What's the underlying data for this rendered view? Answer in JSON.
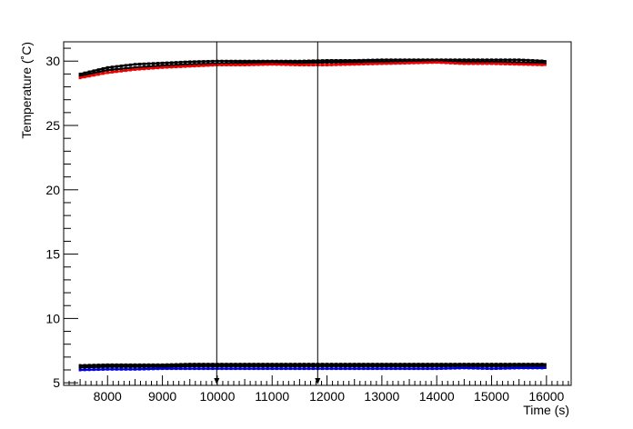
{
  "chart_data": {
    "type": "line",
    "xlabel": "Time (s)",
    "ylabel": "Temperature (˚C)",
    "xlim": [
      7200,
      16450
    ],
    "ylim": [
      4.8,
      31.5
    ],
    "x_ticks": [
      8000,
      9000,
      10000,
      11000,
      12000,
      13000,
      14000,
      15000,
      16000
    ],
    "y_ticks": [
      5,
      10,
      15,
      20,
      25,
      30
    ],
    "grid": false,
    "series": [
      {
        "color": "#000000",
        "x": [
          7500,
          8000,
          8500,
          9000,
          9500,
          10000,
          10500,
          11000,
          11500,
          12000,
          12500,
          13000,
          13500,
          14000,
          14500,
          15000,
          15500,
          16000
        ],
        "values": [
          29.0,
          29.5,
          29.75,
          29.85,
          29.95,
          30.0,
          30.0,
          30.0,
          30.0,
          30.05,
          30.05,
          30.1,
          30.1,
          30.1,
          30.1,
          30.1,
          30.1,
          30.0
        ]
      },
      {
        "color": "#000000",
        "x": [
          7500,
          8000,
          8500,
          9000,
          9500,
          10000,
          10500,
          11000,
          11500,
          12000,
          12500,
          13000,
          13500,
          14000,
          14500,
          15000,
          15500,
          16000
        ],
        "values": [
          28.85,
          29.3,
          29.5,
          29.65,
          29.75,
          29.8,
          29.85,
          29.85,
          29.85,
          29.9,
          29.9,
          29.95,
          29.95,
          29.95,
          29.95,
          29.95,
          29.9,
          29.85
        ]
      },
      {
        "color": "#ee0000",
        "x": [
          7500,
          8000,
          8500,
          9000,
          9500,
          10000,
          10500,
          11000,
          11500,
          12000,
          12500,
          13000,
          13500,
          14000,
          14500,
          15000,
          15500,
          16000
        ],
        "values": [
          28.7,
          29.1,
          29.35,
          29.5,
          29.6,
          29.7,
          29.7,
          29.75,
          29.7,
          29.7,
          29.75,
          29.8,
          29.85,
          29.9,
          29.8,
          29.8,
          29.75,
          29.7
        ]
      },
      {
        "color": "#000000",
        "x": [
          7500,
          8000,
          8500,
          9000,
          9500,
          10000,
          10500,
          11000,
          11500,
          12000,
          12500,
          13000,
          13500,
          14000,
          14500,
          15000,
          15500,
          16000
        ],
        "values": [
          6.35,
          6.4,
          6.4,
          6.4,
          6.45,
          6.45,
          6.45,
          6.45,
          6.45,
          6.45,
          6.45,
          6.45,
          6.45,
          6.45,
          6.45,
          6.45,
          6.45,
          6.45
        ]
      },
      {
        "color": "#000000",
        "x": [
          7500,
          8000,
          8500,
          9000,
          9500,
          10000,
          10500,
          11000,
          11500,
          12000,
          12500,
          13000,
          13500,
          14000,
          14500,
          15000,
          15500,
          16000
        ],
        "values": [
          6.2,
          6.25,
          6.25,
          6.25,
          6.3,
          6.3,
          6.3,
          6.3,
          6.3,
          6.3,
          6.3,
          6.3,
          6.3,
          6.3,
          6.3,
          6.3,
          6.3,
          6.3
        ]
      },
      {
        "color": "#0000dd",
        "x": [
          7500,
          8000,
          8500,
          9000,
          9500,
          10000,
          10500,
          11000,
          11500,
          12000,
          12500,
          13000,
          13500,
          14000,
          14500,
          15000,
          15500,
          16000
        ],
        "values": [
          6.0,
          6.05,
          6.05,
          6.1,
          6.1,
          6.1,
          6.1,
          6.1,
          6.1,
          6.1,
          6.1,
          6.1,
          6.1,
          6.1,
          6.15,
          6.1,
          6.15,
          6.15
        ]
      }
    ],
    "markers": [
      {
        "x": 9990,
        "type": "vertical-arrow"
      },
      {
        "x": 11830,
        "type": "vertical-arrow"
      }
    ]
  }
}
